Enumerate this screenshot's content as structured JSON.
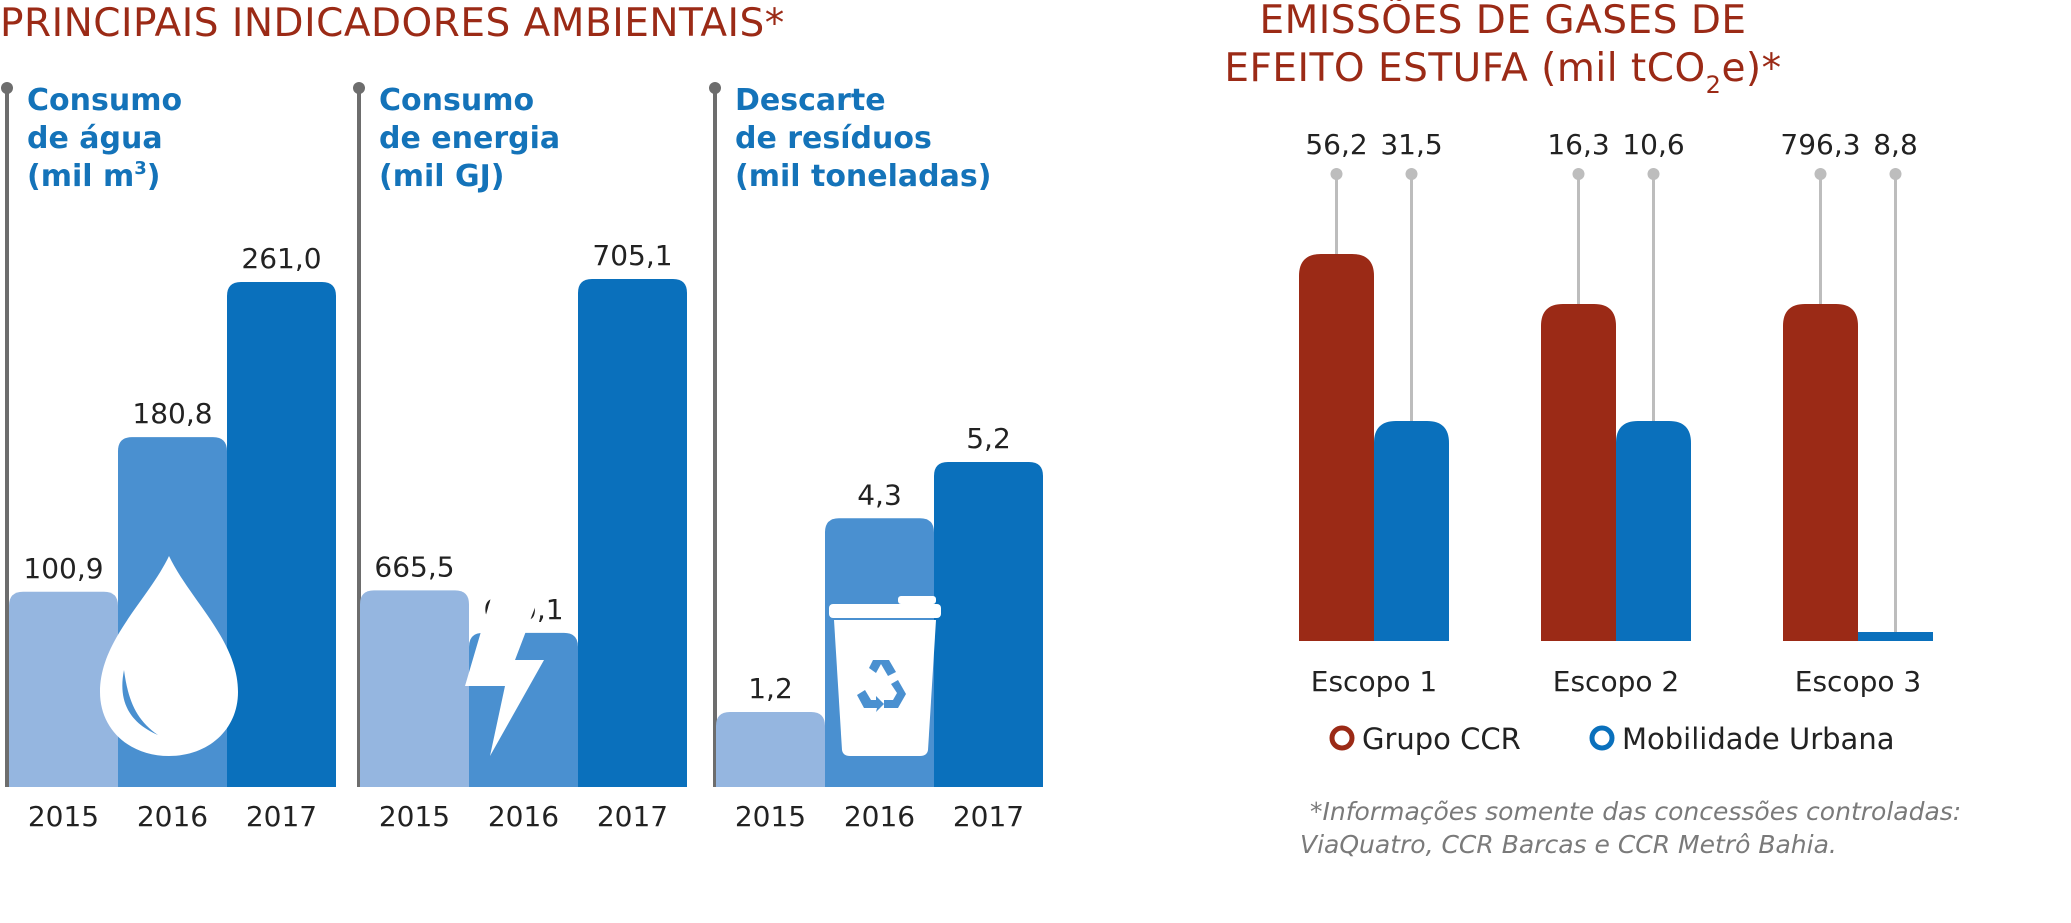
{
  "main_title": "PRINCIPAIS INDICADORES AMBIENTAIS*",
  "colors": {
    "year_2015": "#95b6e0",
    "year_2016": "#4a90d0",
    "year_2017": "#0a70bc",
    "grupo_ccr": "#9b2a16",
    "mobilidade_urbana": "#0a70bc",
    "axis": "#6d6d6d",
    "lollipop": "#bdbdbd",
    "title_red": "#9b2a16",
    "title_blue": "#1473b9"
  },
  "chart_data": [
    {
      "type": "bar",
      "title_lines": [
        "Consumo",
        "de água",
        "(mil m"
      ],
      "title_superscript": "3",
      "title_suffix": ")",
      "categories": [
        "2015",
        "2016",
        "2017"
      ],
      "values": [
        100.9,
        180.8,
        261.0
      ],
      "value_labels": [
        "100,9",
        "180,8",
        "261,0"
      ],
      "icon": "water-drop-icon"
    },
    {
      "type": "bar",
      "title_lines": [
        "Consumo",
        "de energia",
        "(mil GJ)"
      ],
      "categories": [
        "2015",
        "2016",
        "2017"
      ],
      "values": [
        665.5,
        660.1,
        705.1
      ],
      "value_labels": [
        "665,5",
        "660,1",
        "705,1"
      ],
      "icon": "lightning-bolt-icon"
    },
    {
      "type": "bar",
      "title_lines": [
        "Descarte",
        "de resíduos",
        "(mil toneladas)"
      ],
      "categories": [
        "2015",
        "2016",
        "2017"
      ],
      "values": [
        1.2,
        4.3,
        5.2
      ],
      "value_labels": [
        "1,2",
        "4,3",
        "5,2"
      ],
      "icon": "recycle-bin-icon"
    },
    {
      "type": "bar",
      "title_line1": "EMISSÕES DE GASES DE",
      "title_line2_prefix": "EFEITO ESTUFA (mil tCO",
      "title_line2_sub": "2",
      "title_line2_suffix": "e)*",
      "categories": [
        "Escopo 1",
        "Escopo 2",
        "Escopo 3"
      ],
      "series": [
        {
          "name": "Grupo CCR",
          "values": [
            56.2,
            16.3,
            796.3
          ],
          "value_labels": [
            "56,2",
            "16,3",
            "796,3"
          ]
        },
        {
          "name": "Mobilidade Urbana",
          "values": [
            31.5,
            10.6,
            8.8
          ],
          "value_labels": [
            "31,5",
            "10,6",
            "8,8"
          ]
        }
      ],
      "legend_position": "bottom"
    }
  ],
  "footnote_lines": [
    "*Informações somente das concessões controladas:",
    "ViaQuatro, CCR Barcas e CCR Metrô Bahia."
  ]
}
